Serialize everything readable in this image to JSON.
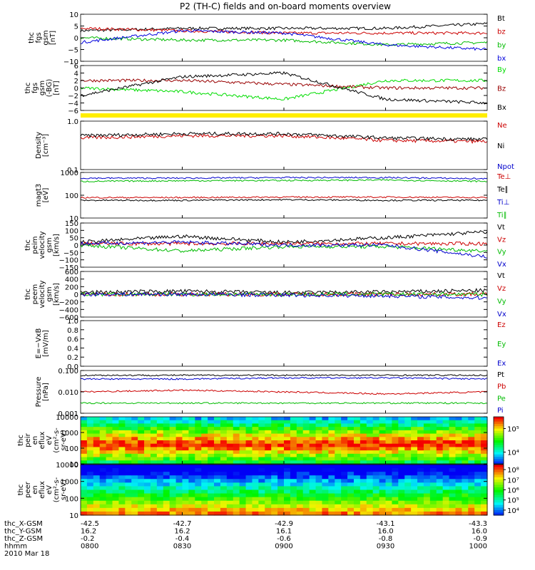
{
  "title": "P2 (TH-C) fields and on-board moments overview",
  "x_axis": {
    "rows": [
      {
        "label": "thc_X-GSM",
        "values": [
          "-42.5",
          "-42.7",
          "-42.9",
          "-43.1",
          "-43.3"
        ]
      },
      {
        "label": "thc_Y-GSM",
        "values": [
          "16.2",
          "16.2",
          "16.1",
          "16.0",
          "16.0"
        ]
      },
      {
        "label": "thc_Z-GSM",
        "values": [
          "-0.2",
          "-0.4",
          "-0.6",
          "-0.8",
          "-0.9"
        ]
      },
      {
        "label": "hhmm",
        "values": [
          "0800",
          "0830",
          "0900",
          "0930",
          "1000"
        ]
      }
    ],
    "date": "2010 Mar 18"
  },
  "panels": [
    {
      "id": "fgs",
      "ylabel": [
        "thc",
        "fgs",
        "gsm",
        "[nT]"
      ],
      "yticks": [
        "10",
        "5",
        "0",
        "−5",
        "−10"
      ],
      "legend": [
        {
          "name": "Bt",
          "color": "#000000"
        },
        {
          "name": "bz",
          "color": "#cc0000"
        },
        {
          "name": "by",
          "color": "#00bb00"
        },
        {
          "name": "bx",
          "color": "#0000dd"
        }
      ]
    },
    {
      "id": "fgs_dsl",
      "ylabel": [
        "thc",
        "fgs",
        "gsm",
        "(-BG)",
        "[nT]"
      ],
      "yticks": [
        "6",
        "4",
        "2",
        "0",
        "−2",
        "−4",
        "−6"
      ],
      "legend": [
        {
          "name": "By",
          "color": "#00dd00"
        },
        {
          "name": "Bz",
          "color": "#990000"
        },
        {
          "name": "Bx",
          "color": "#000000"
        }
      ]
    },
    {
      "id": "density",
      "ylabel": [
        "Density",
        "[cm⁻³]"
      ],
      "yticks": [
        "1.0",
        "0.1"
      ],
      "legend": [
        {
          "name": "Ne",
          "color": "#cc0000"
        },
        {
          "name": "Ni",
          "color": "#000000"
        },
        {
          "name": "Npot",
          "color": "#0000cc"
        }
      ]
    },
    {
      "id": "temp",
      "ylabel": [
        "magt3",
        "[eV]"
      ],
      "yticks": [
        "1000",
        "100",
        "10"
      ],
      "legend": [
        {
          "name": "Te⊥",
          "color": "#cc0000"
        },
        {
          "name": "Te∥",
          "color": "#000000"
        },
        {
          "name": "Ti⊥",
          "color": "#0000cc"
        },
        {
          "name": "Ti∥",
          "color": "#00bb00"
        }
      ]
    },
    {
      "id": "peim",
      "ylabel": [
        "thc",
        "peim",
        "velocity",
        "gsm",
        "[km/s]"
      ],
      "yticks": [
        "150",
        "100",
        "50",
        "0",
        "−50",
        "−100",
        "−150"
      ],
      "legend": [
        {
          "name": "Vt",
          "color": "#000000"
        },
        {
          "name": "Vz",
          "color": "#cc0000"
        },
        {
          "name": "Vy",
          "color": "#00bb00"
        },
        {
          "name": "Vx",
          "color": "#0000cc"
        }
      ]
    },
    {
      "id": "peem",
      "ylabel": [
        "thc",
        "peem",
        "velocity",
        "gsm",
        "[km/s]"
      ],
      "yticks": [
        "600",
        "400",
        "200",
        "0",
        "−200",
        "−400",
        "−600"
      ],
      "legend": [
        {
          "name": "Vt",
          "color": "#000000"
        },
        {
          "name": "Vz",
          "color": "#cc0000"
        },
        {
          "name": "Vy",
          "color": "#00bb00"
        },
        {
          "name": "Vx",
          "color": "#0000cc"
        }
      ]
    },
    {
      "id": "efield",
      "ylabel": [
        "E=−VxB",
        "[mV/m]"
      ],
      "yticks": [
        "1.0",
        "0.8",
        "0.6",
        "0.4",
        "0.2",
        "0.0"
      ],
      "legend": [
        {
          "name": "Ez",
          "color": "#cc0000"
        },
        {
          "name": "Ey",
          "color": "#00bb00"
        },
        {
          "name": "Ex",
          "color": "#0000cc"
        }
      ]
    },
    {
      "id": "pressure",
      "ylabel": [
        "Pressure",
        "[nPa]"
      ],
      "yticks": [
        "0.100",
        "0.010",
        "0.001"
      ],
      "legend": [
        {
          "name": "Pt",
          "color": "#000000"
        },
        {
          "name": "Pb",
          "color": "#cc0000"
        },
        {
          "name": "Pe",
          "color": "#00bb00"
        },
        {
          "name": "Pi",
          "color": "#0000cc"
        }
      ]
    },
    {
      "id": "peir",
      "ylabel": [
        "thc",
        "peir",
        "en",
        "eflux",
        "eV",
        "(cm²-s-",
        "sr-eV)"
      ],
      "yticks": [
        "10000",
        "1000",
        "100",
        "10"
      ],
      "colorbar": [
        "10⁵",
        "10⁴"
      ]
    },
    {
      "id": "peer",
      "ylabel": [
        "thc",
        "peer",
        "en",
        "eflux",
        "eV",
        "(cm²-s-",
        "sr-eV)"
      ],
      "yticks": [
        "10000",
        "1000",
        "100",
        "10"
      ],
      "colorbar": [
        "10⁸",
        "10⁷",
        "10⁶",
        "10⁵",
        "10⁴"
      ]
    }
  ],
  "chart_data": [
    {
      "type": "line",
      "title": "P2 (TH-C) fields and on-board moments overview",
      "ylabel": "thc fgs gsm [nT]",
      "xlabel": "hhmm",
      "x": [
        "0800",
        "0830",
        "0900",
        "0930",
        "1000"
      ],
      "ylim": [
        -10,
        10
      ],
      "series": [
        {
          "name": "Bt",
          "color": "#000000",
          "values": [
            3,
            4,
            4,
            4,
            6
          ]
        },
        {
          "name": "bz",
          "color": "#cc0000",
          "values": [
            4,
            3,
            2,
            2,
            2
          ]
        },
        {
          "name": "by",
          "color": "#00bb00",
          "values": [
            0,
            -1,
            -1,
            -3,
            -2
          ]
        },
        {
          "name": "bx",
          "color": "#0000dd",
          "values": [
            -2,
            3,
            2,
            -3,
            -5
          ]
        }
      ]
    },
    {
      "type": "line",
      "ylabel": "thc fgs gsm (-BG) [nT]",
      "xlabel": "hhmm",
      "x": [
        "0800",
        "0830",
        "0900",
        "0930",
        "1000"
      ],
      "ylim": [
        -6,
        6
      ],
      "series": [
        {
          "name": "By",
          "color": "#00dd00",
          "values": [
            0,
            -1,
            -3,
            2,
            2
          ]
        },
        {
          "name": "Bz",
          "color": "#990000",
          "values": [
            2,
            2,
            1,
            0,
            0
          ]
        },
        {
          "name": "Bx",
          "color": "#000000",
          "values": [
            -2,
            3,
            4,
            -3,
            -4
          ]
        }
      ]
    },
    {
      "type": "line",
      "ylabel": "Density [cm⁻³]",
      "xlabel": "hhmm",
      "x": [
        "0800",
        "0830",
        "0900",
        "0930",
        "1000"
      ],
      "ylim": [
        0.1,
        1.0
      ],
      "yscale": "log",
      "series": [
        {
          "name": "Ne",
          "color": "#cc0000",
          "values": [
            0.45,
            0.5,
            0.5,
            0.4,
            0.38
          ]
        },
        {
          "name": "Ni",
          "color": "#000000",
          "values": [
            0.5,
            0.55,
            0.55,
            0.45,
            0.42
          ]
        }
      ]
    },
    {
      "type": "line",
      "ylabel": "magt3 [eV]",
      "xlabel": "hhmm",
      "x": [
        "0800",
        "0830",
        "0900",
        "0930",
        "1000"
      ],
      "ylim": [
        10,
        1500
      ],
      "yscale": "log",
      "series": [
        {
          "name": "Te⊥",
          "color": "#cc0000",
          "values": [
            95,
            95,
            100,
            100,
            95
          ]
        },
        {
          "name": "Te∥",
          "color": "#000000",
          "values": [
            70,
            70,
            75,
            70,
            70
          ]
        },
        {
          "name": "Ti⊥",
          "color": "#0000cc",
          "values": [
            800,
            800,
            850,
            850,
            750
          ]
        },
        {
          "name": "Ti∥",
          "color": "#00bb00",
          "values": [
            560,
            600,
            620,
            650,
            560
          ]
        }
      ]
    },
    {
      "type": "line",
      "ylabel": "thc peim velocity gsm [km/s]",
      "xlabel": "hhmm",
      "x": [
        "0800",
        "0830",
        "0900",
        "0930",
        "1000"
      ],
      "ylim": [
        -150,
        150
      ],
      "series": [
        {
          "name": "Vt",
          "color": "#000000",
          "values": [
            20,
            60,
            20,
            50,
            90
          ]
        },
        {
          "name": "Vz",
          "color": "#cc0000",
          "values": [
            10,
            10,
            10,
            10,
            10
          ]
        },
        {
          "name": "Vy",
          "color": "#00bb00",
          "values": [
            0,
            -40,
            -10,
            -10,
            -40
          ]
        },
        {
          "name": "Vx",
          "color": "#0000cc",
          "values": [
            10,
            20,
            0,
            0,
            -80
          ]
        }
      ]
    },
    {
      "type": "line",
      "ylabel": "thc peem velocity gsm [km/s]",
      "xlabel": "hhmm",
      "x": [
        "0800",
        "0830",
        "0900",
        "0930",
        "1000"
      ],
      "ylim": [
        -600,
        600
      ],
      "series": [
        {
          "name": "Vt",
          "color": "#000000",
          "values": [
            50,
            80,
            40,
            60,
            100
          ]
        },
        {
          "name": "Vz",
          "color": "#cc0000",
          "values": [
            0,
            0,
            0,
            0,
            0
          ]
        },
        {
          "name": "Vy",
          "color": "#00bb00",
          "values": [
            0,
            0,
            0,
            0,
            0
          ]
        },
        {
          "name": "Vx",
          "color": "#0000cc",
          "values": [
            0,
            0,
            -20,
            -40,
            -100
          ]
        }
      ]
    },
    {
      "type": "line",
      "ylabel": "E=−VxB [mV/m]",
      "xlabel": "hhmm",
      "x": [
        "0800",
        "0830",
        "0900",
        "0930",
        "1000"
      ],
      "ylim": [
        0,
        1
      ],
      "series": []
    },
    {
      "type": "line",
      "ylabel": "Pressure [nPa]",
      "xlabel": "hhmm",
      "x": [
        "0800",
        "0830",
        "0900",
        "0930",
        "1000"
      ],
      "ylim": [
        0.001,
        0.1
      ],
      "yscale": "log",
      "series": [
        {
          "name": "Pt",
          "color": "#000000",
          "values": [
            0.06,
            0.06,
            0.06,
            0.06,
            0.06
          ]
        },
        {
          "name": "Pb",
          "color": "#cc0000",
          "values": [
            0.01,
            0.012,
            0.01,
            0.008,
            0.01
          ]
        },
        {
          "name": "Pe",
          "color": "#00bb00",
          "values": [
            0.003,
            0.003,
            0.003,
            0.003,
            0.003
          ]
        },
        {
          "name": "Pi",
          "color": "#0000cc",
          "values": [
            0.04,
            0.04,
            0.045,
            0.045,
            0.04
          ]
        }
      ]
    },
    {
      "type": "heatmap",
      "ylabel": "thc peir en eflux eV (cm²-s-sr-eV)",
      "xlabel": "hhmm",
      "x": [
        "0800",
        "0830",
        "0900",
        "0930",
        "1000"
      ],
      "ylim": [
        10,
        20000
      ],
      "yscale": "log",
      "colorbar_range": [
        5000,
        200000
      ]
    },
    {
      "type": "heatmap",
      "ylabel": "thc peer en eflux eV (cm²-s-sr-eV)",
      "xlabel": "hhmm",
      "x": [
        "0800",
        "0830",
        "0900",
        "0930",
        "1000"
      ],
      "ylim": [
        10,
        20000
      ],
      "yscale": "log",
      "colorbar_range": [
        5000,
        200000000
      ]
    }
  ]
}
